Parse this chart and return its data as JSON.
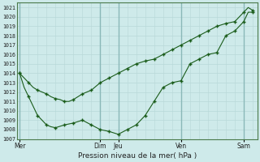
{
  "xlabel": "Pression niveau de la mer( hPa )",
  "bg_color": "#ceeaea",
  "grid_minor_color": "#b8d8d8",
  "grid_major_color": "#8ab8b8",
  "line_color": "#1a5c1a",
  "ylim": [
    1007,
    1021.5
  ],
  "yticks": [
    1007,
    1008,
    1009,
    1010,
    1011,
    1012,
    1013,
    1014,
    1015,
    1016,
    1017,
    1018,
    1019,
    1020,
    1021
  ],
  "day_labels": [
    "Mer",
    "Dim",
    "Jeu",
    "Ven",
    "Sam"
  ],
  "day_positions": [
    0,
    9,
    11,
    18,
    25
  ],
  "xlim": [
    -0.3,
    26.5
  ],
  "series1_x": [
    0,
    0.5,
    1,
    1.5,
    2,
    2.5,
    3,
    3.5,
    4,
    4.5,
    5,
    5.5,
    6,
    6.5,
    7,
    8,
    9,
    10,
    11,
    12,
    13,
    14,
    15,
    16,
    17,
    18,
    19,
    20,
    21,
    22,
    23,
    24,
    25,
    25.5,
    26
  ],
  "series1_y": [
    1014.0,
    1013.5,
    1013.0,
    1012.5,
    1012.2,
    1012.0,
    1011.8,
    1011.5,
    1011.3,
    1011.2,
    1011.0,
    1011.0,
    1011.2,
    1011.5,
    1011.8,
    1012.2,
    1013.0,
    1013.5,
    1014.0,
    1014.5,
    1015.0,
    1015.3,
    1015.5,
    1016.0,
    1016.5,
    1017.0,
    1017.5,
    1018.0,
    1018.5,
    1019.0,
    1019.3,
    1019.5,
    1020.5,
    1021.0,
    1020.7
  ],
  "series2_x": [
    0,
    0.5,
    1,
    1.5,
    2,
    2.5,
    3,
    3.5,
    4,
    5,
    6,
    7,
    8,
    9,
    10,
    11,
    12,
    13,
    14,
    15,
    16,
    17,
    18,
    19,
    20,
    21,
    22,
    23,
    24,
    25,
    25.5,
    26
  ],
  "series2_y": [
    1014.0,
    1012.5,
    1011.5,
    1010.5,
    1009.5,
    1009.0,
    1008.5,
    1008.3,
    1008.2,
    1008.5,
    1008.7,
    1009.0,
    1008.5,
    1008.0,
    1007.8,
    1007.5,
    1008.0,
    1008.5,
    1009.5,
    1011.0,
    1012.5,
    1013.0,
    1013.2,
    1015.0,
    1015.5,
    1016.0,
    1016.2,
    1018.0,
    1018.5,
    1019.5,
    1020.5,
    1020.5
  ],
  "series1_markers_x": [
    0,
    1,
    2,
    3,
    4,
    5,
    6,
    7,
    8,
    9,
    10,
    11,
    12,
    13,
    14,
    15,
    16,
    17,
    18,
    19,
    20,
    21,
    22,
    23,
    24,
    25,
    26
  ],
  "series1_markers_y": [
    1014.0,
    1013.0,
    1012.2,
    1011.8,
    1011.3,
    1011.0,
    1011.2,
    1011.8,
    1012.2,
    1013.0,
    1013.5,
    1014.0,
    1014.5,
    1015.0,
    1015.3,
    1015.5,
    1016.0,
    1016.5,
    1017.0,
    1017.5,
    1018.0,
    1018.5,
    1019.0,
    1019.3,
    1019.5,
    1020.5,
    1020.7
  ],
  "series2_markers_x": [
    0,
    1,
    2,
    3,
    4,
    5,
    6,
    7,
    8,
    9,
    10,
    11,
    12,
    13,
    14,
    15,
    16,
    17,
    18,
    19,
    20,
    21,
    22,
    23,
    24,
    25,
    26
  ],
  "series2_markers_y": [
    1014.0,
    1011.5,
    1009.5,
    1008.5,
    1008.2,
    1008.5,
    1008.7,
    1009.0,
    1008.5,
    1008.0,
    1007.8,
    1007.5,
    1008.0,
    1008.5,
    1009.5,
    1011.0,
    1012.5,
    1013.0,
    1013.2,
    1015.0,
    1015.5,
    1016.0,
    1016.2,
    1018.0,
    1018.5,
    1019.5,
    1020.5
  ]
}
